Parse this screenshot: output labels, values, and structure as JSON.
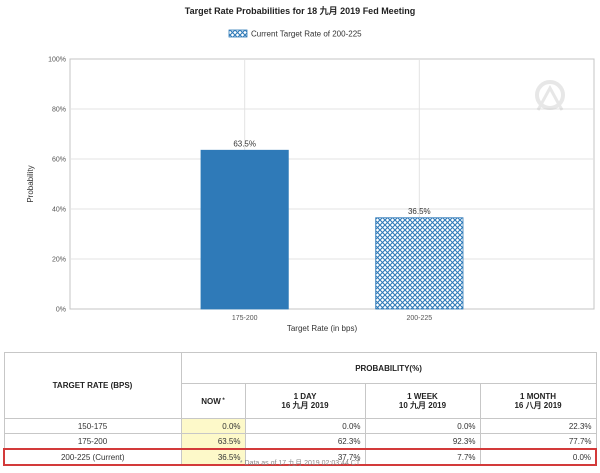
{
  "chart_data": {
    "type": "bar",
    "title": "Target Rate Probabilities for 18 九月 2019 Fed Meeting",
    "legend": {
      "label": "Current Target Rate of 200-225",
      "placement": "top"
    },
    "categories": [
      "175-200",
      "200-225"
    ],
    "values": [
      63.5,
      36.5
    ],
    "value_labels": [
      "63.5%",
      "36.5%"
    ],
    "bar_styles": [
      "solid",
      "crosshatch"
    ],
    "xlabel": "Target Rate (in bps)",
    "ylabel": "Probability",
    "ylim": [
      0,
      100
    ],
    "yticks": [
      0,
      20,
      40,
      60,
      80,
      100
    ],
    "ytick_labels": [
      "0%",
      "20%",
      "40%",
      "60%",
      "80%",
      "100%"
    ],
    "grid": true,
    "colors": {
      "bar": "#2f7ab8",
      "hatch": "#2f7ab8",
      "plot_border": "#c4c4c4"
    }
  },
  "table": {
    "rate_header": "TARGET RATE (BPS)",
    "prob_header": "PROBABILITY(%)",
    "columns": [
      {
        "line1": "NOW",
        "line2": "",
        "marker": "*"
      },
      {
        "line1": "1 DAY",
        "line2": "16 九月 2019",
        "marker": ""
      },
      {
        "line1": "1 WEEK",
        "line2": "10 九月 2019",
        "marker": ""
      },
      {
        "line1": "1 MONTH",
        "line2": "16 八月 2019",
        "marker": ""
      }
    ],
    "rows": [
      {
        "rate": "150-175",
        "values": [
          "0.0%",
          "0.0%",
          "0.0%",
          "22.3%"
        ]
      },
      {
        "rate": "175-200",
        "values": [
          "63.5%",
          "62.3%",
          "92.3%",
          "77.7%"
        ]
      },
      {
        "rate": "200-225 (Current)",
        "values": [
          "36.5%",
          "37.7%",
          "7.7%",
          "0.0%"
        ]
      }
    ],
    "footnote": "* Data as of 17 九月 2019 02:03:44 CT"
  }
}
